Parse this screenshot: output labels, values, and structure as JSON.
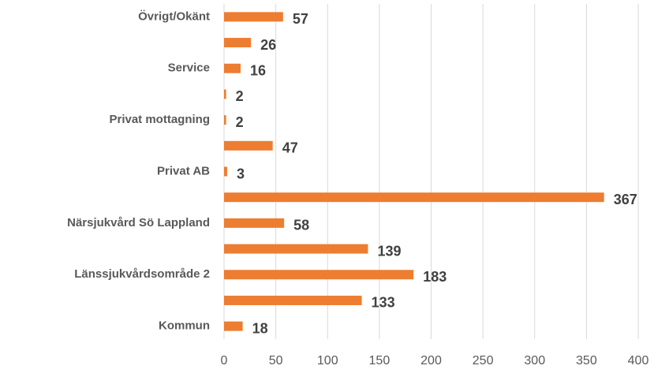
{
  "chart_data": {
    "type": "bar",
    "orientation": "horizontal",
    "categories": [
      "Övrigt/Okänt",
      null,
      "Service",
      null,
      "Privat mottagning",
      null,
      "Privat AB",
      null,
      "Närsjukvård Sö Lappland",
      null,
      "Länssjukvårdsområde 2",
      null,
      "Kommun"
    ],
    "values": [
      57,
      26,
      16,
      2,
      2,
      47,
      3,
      367,
      58,
      139,
      183,
      133,
      18
    ],
    "color": "#ed7d31",
    "xlim": [
      0,
      400
    ],
    "xticks": [
      0,
      50,
      100,
      150,
      200,
      250,
      300,
      350,
      400
    ],
    "grid": true
  }
}
